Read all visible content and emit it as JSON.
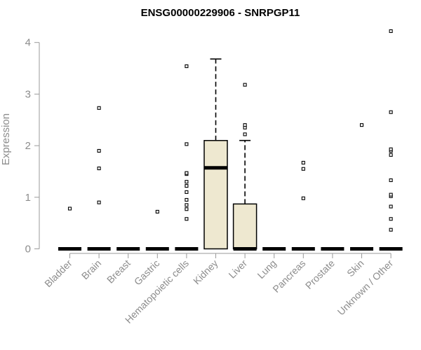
{
  "chart_data": {
    "type": "box",
    "title": "ENSG00000229906 - SNRPGP11",
    "xlabel": "",
    "ylabel": "Expression",
    "ylim": [
      0,
      4.3
    ],
    "yticks": [
      0,
      1,
      2,
      3,
      4
    ],
    "grid": false,
    "box_fill": "#eee8d0",
    "categories": [
      "Bladder",
      "Brain",
      "Breast",
      "Gastric",
      "Hematopoietic cells",
      "Kidney",
      "Liver",
      "Lung",
      "Pancreas",
      "Prostate",
      "Skin",
      "Unknown / Other"
    ],
    "boxes": [
      {
        "q1": 0,
        "median": 0,
        "q3": 0,
        "whisker_low": 0,
        "whisker_high": 0,
        "outliers": [
          0.78
        ]
      },
      {
        "q1": 0,
        "median": 0,
        "q3": 0,
        "whisker_low": 0,
        "whisker_high": 0,
        "outliers": [
          0.9,
          1.56,
          1.9,
          2.73
        ]
      },
      {
        "q1": 0,
        "median": 0,
        "q3": 0,
        "whisker_low": 0,
        "whisker_high": 0,
        "outliers": []
      },
      {
        "q1": 0,
        "median": 0,
        "q3": 0,
        "whisker_low": 0,
        "whisker_high": 0,
        "outliers": [
          0.72
        ]
      },
      {
        "q1": 0,
        "median": 0,
        "q3": 0,
        "whisker_low": 0,
        "whisker_high": 0,
        "outliers": [
          0.58,
          0.77,
          0.85,
          0.95,
          1.1,
          1.22,
          1.3,
          1.45,
          1.47,
          2.03,
          3.54
        ]
      },
      {
        "q1": 0,
        "median": 1.57,
        "q3": 2.1,
        "whisker_low": 0,
        "whisker_high": 3.68,
        "outliers": []
      },
      {
        "q1": 0,
        "median": 0,
        "q3": 0.87,
        "whisker_low": 0,
        "whisker_high": 2.1,
        "outliers": [
          2.22,
          2.35,
          2.4,
          3.18
        ]
      },
      {
        "q1": 0,
        "median": 0,
        "q3": 0,
        "whisker_low": 0,
        "whisker_high": 0,
        "outliers": []
      },
      {
        "q1": 0,
        "median": 0,
        "q3": 0,
        "whisker_low": 0,
        "whisker_high": 0,
        "outliers": [
          0.98,
          1.55,
          1.67
        ]
      },
      {
        "q1": 0,
        "median": 0,
        "q3": 0,
        "whisker_low": 0,
        "whisker_high": 0,
        "outliers": []
      },
      {
        "q1": 0,
        "median": 0,
        "q3": 0,
        "whisker_low": 0,
        "whisker_high": 0,
        "outliers": [
          2.4
        ]
      },
      {
        "q1": 0,
        "median": 0,
        "q3": 0,
        "whisker_low": 0,
        "whisker_high": 0,
        "outliers": [
          0.37,
          0.58,
          0.82,
          1.02,
          1.05,
          1.33,
          1.82,
          1.9,
          1.93,
          2.65,
          4.22
        ]
      }
    ]
  }
}
